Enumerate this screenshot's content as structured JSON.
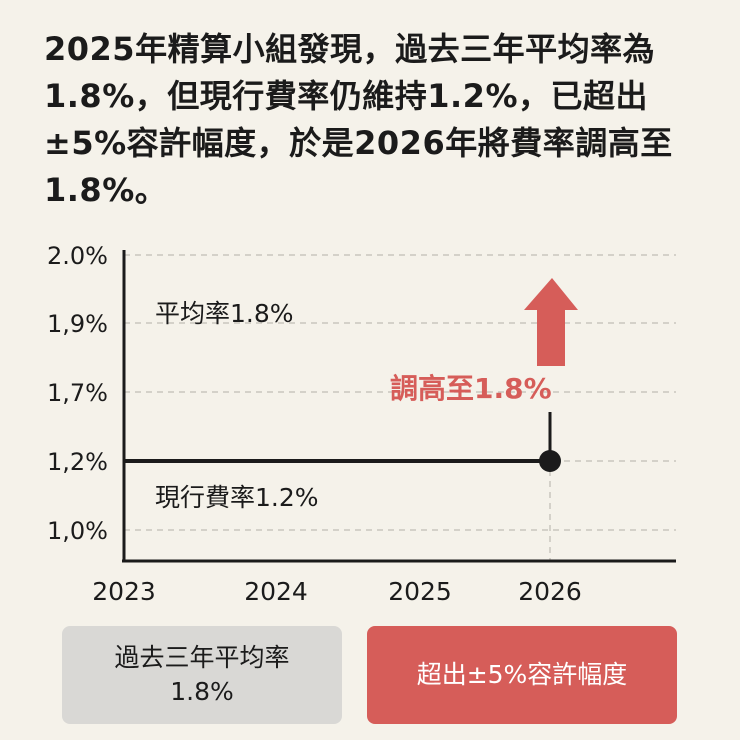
{
  "headline": "2025年精算小組發現，過去三年平均率為1.8%，但現行費率仍維持1.2%，已超出±5%容許幅度，於是2026年將費率調高至1.8%。",
  "chart_data": {
    "type": "line",
    "title": "",
    "xlabel": "",
    "ylabel": "",
    "y_tick_labels": [
      "2.0%",
      "1,9%",
      "1,7%",
      "1,2%",
      "1,0%"
    ],
    "x_tick_labels": [
      "2023",
      "2024",
      "2025",
      "2026"
    ],
    "series": [
      {
        "x": [
          "2023",
          "2024",
          "2025",
          "2026"
        ],
        "y": [
          1.2,
          1.2,
          1.2,
          1.2
        ]
      }
    ],
    "marker": {
      "x": "2026",
      "y": 1.2
    },
    "annotations": {
      "average_label": "平均率1.8%",
      "current_label": "現行費率1.2%",
      "raise_label": "調高至1.8%"
    },
    "grid": "dashed horizontal",
    "colors": {
      "line": "#1b1b1b",
      "arrow": "#d65d59",
      "grid": "#c9c6be"
    }
  },
  "boxes": {
    "left": {
      "line1": "過去三年平均率",
      "line2": "1.8%"
    },
    "right": {
      "text": "超出±5%容許幅度"
    }
  }
}
